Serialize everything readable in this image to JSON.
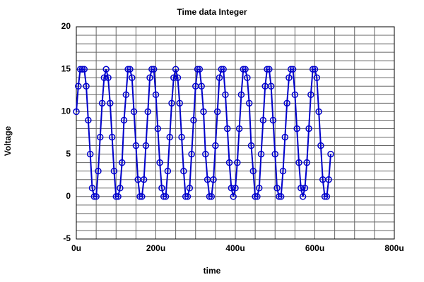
{
  "chart_data": {
    "type": "line",
    "title": "Time data Integer",
    "x_label": "time",
    "y_label": "Voltage",
    "x": [
      0,
      5,
      10,
      15,
      20,
      25,
      30,
      35,
      40,
      45,
      50,
      55,
      60,
      65,
      70,
      75,
      80,
      85,
      90,
      95,
      100,
      105,
      110,
      115,
      120,
      125,
      130,
      135,
      140,
      145,
      150,
      155,
      160,
      165,
      170,
      175,
      180,
      185,
      190,
      195,
      200,
      205,
      210,
      215,
      220,
      225,
      230,
      235,
      240,
      245,
      250,
      255,
      260,
      265,
      270,
      275,
      280,
      285,
      290,
      295,
      300,
      305,
      310,
      315,
      320,
      325,
      330,
      335,
      340,
      345,
      350,
      355,
      360,
      365,
      370,
      375,
      380,
      385,
      390,
      395,
      400,
      405,
      410,
      415,
      420,
      425,
      430,
      435,
      440,
      445,
      450,
      455,
      460,
      465,
      470,
      475,
      480,
      485,
      490,
      495,
      500,
      505,
      510,
      515,
      520,
      525,
      530,
      535,
      540,
      545,
      550,
      555,
      560,
      565,
      570,
      575,
      580,
      585,
      590,
      595,
      600,
      605,
      610,
      615,
      620,
      625,
      630,
      635,
      640
    ],
    "series": [
      {
        "color": "#0000cc",
        "values": [
          10,
          13,
          15,
          15,
          15,
          13,
          9,
          5,
          1,
          0,
          0,
          3,
          7,
          11,
          14,
          15,
          14,
          11,
          7,
          3,
          0,
          0,
          1,
          4,
          9,
          12,
          15,
          15,
          14,
          10,
          6,
          2,
          0,
          0,
          2,
          6,
          10,
          14,
          15,
          15,
          12,
          8,
          4,
          1,
          0,
          0,
          3,
          7,
          11,
          14,
          15,
          14,
          11,
          7,
          3,
          0,
          0,
          1,
          5,
          9,
          13,
          15,
          15,
          13,
          10,
          5,
          2,
          0,
          0,
          2,
          6,
          10,
          14,
          15,
          15,
          12,
          8,
          4,
          1,
          0,
          1,
          4,
          8,
          12,
          15,
          15,
          14,
          11,
          6,
          3,
          0,
          0,
          1,
          5,
          9,
          13,
          15,
          15,
          13,
          9,
          5,
          1,
          0,
          0,
          3,
          7,
          11,
          14,
          15,
          15,
          12,
          8,
          4,
          1,
          0,
          1,
          4,
          8,
          12,
          15,
          15,
          14,
          10,
          6,
          2,
          0,
          0,
          2,
          5
        ]
      }
    ],
    "xlim": [
      0,
      800
    ],
    "ylim": [
      -5,
      20
    ],
    "xticks": [
      {
        "value": 0,
        "label": "0u"
      },
      {
        "value": 200,
        "label": "200u"
      },
      {
        "value": 400,
        "label": "400u"
      },
      {
        "value": 600,
        "label": "600u"
      },
      {
        "value": 800,
        "label": "800u"
      }
    ],
    "yticks": [
      -5,
      0,
      5,
      10,
      15,
      20
    ],
    "x_minor_ticks": [
      50,
      100,
      150,
      250,
      300,
      350,
      450,
      500,
      550,
      650,
      700,
      750
    ],
    "y_minor_ticks": [
      -4,
      -3,
      -2,
      -1,
      1,
      2,
      3,
      4,
      6,
      7,
      8,
      9,
      11,
      12,
      13,
      14,
      16,
      17,
      18,
      19
    ],
    "grid": true,
    "markers": "circle"
  }
}
